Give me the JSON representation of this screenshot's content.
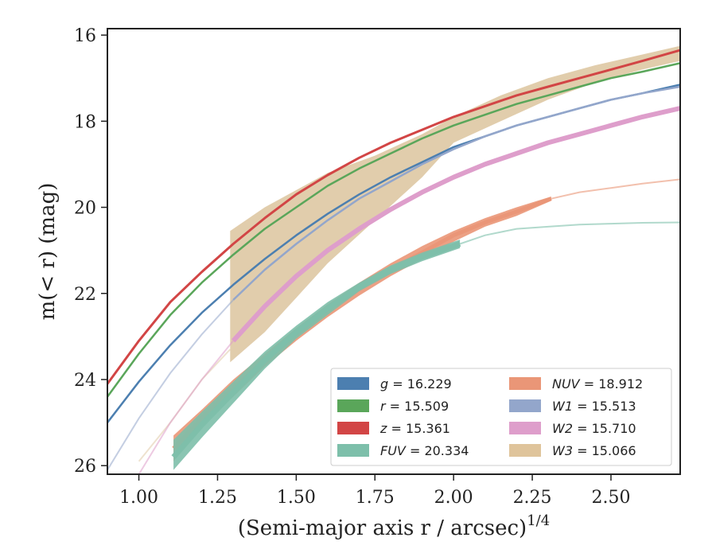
{
  "chart_data": {
    "type": "line",
    "xlabel": "(Semi-major axis r / arcsec)",
    "xlabel_superscript": "1/4",
    "ylabel": "m(< r) (mag)",
    "xlim": [
      0.9,
      2.72
    ],
    "ylim": [
      26.2,
      15.85
    ],
    "y_inverted": true,
    "x_ticks": [
      1.0,
      1.25,
      1.5,
      1.75,
      2.0,
      2.25,
      2.5
    ],
    "x_tick_labels": [
      "1.00",
      "1.25",
      "1.50",
      "1.75",
      "2.00",
      "2.25",
      "2.50"
    ],
    "y_ticks": [
      16,
      18,
      20,
      22,
      24,
      26
    ],
    "y_tick_labels": [
      "16",
      "18",
      "20",
      "22",
      "24",
      "26"
    ],
    "grid": false,
    "legend_position": "lower-right",
    "legend_ncol": 2,
    "legend": [
      {
        "band": "g",
        "value": "16.229",
        "color": "#4c7fb0"
      },
      {
        "band": "NUV",
        "value": "18.912",
        "color": "#ea9677"
      },
      {
        "band": "r",
        "value": "15.509",
        "color": "#5aa65a"
      },
      {
        "band": "W1",
        "value": "15.513",
        "color": "#93a6cb"
      },
      {
        "band": "z",
        "value": "15.361",
        "color": "#d24545"
      },
      {
        "band": "W2",
        "value": "15.710",
        "color": "#de9ecb"
      },
      {
        "band": "FUV",
        "value": "20.334",
        "color": "#7dbfaa"
      },
      {
        "band": "W3",
        "value": "15.066",
        "color": "#dfc49b"
      }
    ],
    "series": [
      {
        "name": "W3",
        "color": "#d9bf95",
        "band_fill": true,
        "x": [
          1.29,
          1.4,
          1.5,
          1.6,
          1.75,
          1.9,
          2.0,
          2.15,
          2.3,
          2.45,
          2.6,
          2.72
        ],
        "y_low": [
          23.6,
          22.9,
          22.1,
          21.3,
          20.3,
          19.3,
          18.5,
          18.0,
          17.5,
          17.1,
          16.8,
          16.6
        ],
        "y_high": [
          20.55,
          20.0,
          19.6,
          19.2,
          18.8,
          18.3,
          17.9,
          17.4,
          17.0,
          16.7,
          16.45,
          16.25
        ],
        "faint_x": [
          1.0,
          1.1,
          1.2,
          1.29
        ],
        "faint_y": [
          25.9,
          25.0,
          24.0,
          23.3
        ]
      },
      {
        "name": "z",
        "color": "#d24545",
        "width": 3,
        "x": [
          0.9,
          1.0,
          1.1,
          1.2,
          1.3,
          1.4,
          1.5,
          1.6,
          1.7,
          1.8,
          1.9,
          2.0,
          2.1,
          2.2,
          2.3,
          2.4,
          2.5,
          2.6,
          2.72
        ],
        "y": [
          24.1,
          23.1,
          22.2,
          21.5,
          20.85,
          20.25,
          19.7,
          19.25,
          18.85,
          18.5,
          18.2,
          17.9,
          17.65,
          17.4,
          17.2,
          17.0,
          16.8,
          16.6,
          16.35
        ]
      },
      {
        "name": "r",
        "color": "#5aa65a",
        "width": 2.5,
        "x": [
          0.9,
          1.0,
          1.1,
          1.2,
          1.3,
          1.4,
          1.5,
          1.6,
          1.7,
          1.8,
          1.9,
          2.0,
          2.1,
          2.2,
          2.3,
          2.4,
          2.5,
          2.6,
          2.72
        ],
        "y": [
          24.4,
          23.4,
          22.5,
          21.75,
          21.1,
          20.5,
          20.0,
          19.5,
          19.1,
          18.75,
          18.4,
          18.1,
          17.85,
          17.6,
          17.4,
          17.2,
          17.0,
          16.85,
          16.65
        ]
      },
      {
        "name": "g",
        "color": "#4c7fb0",
        "width": 2.5,
        "x": [
          0.9,
          1.0,
          1.1,
          1.2,
          1.3,
          1.4,
          1.5,
          1.6,
          1.7,
          1.8,
          1.9,
          2.0,
          2.1,
          2.2,
          2.3,
          2.4,
          2.5,
          2.6,
          2.72
        ],
        "y": [
          25.0,
          24.05,
          23.2,
          22.45,
          21.8,
          21.2,
          20.65,
          20.15,
          19.7,
          19.3,
          18.95,
          18.6,
          18.35,
          18.1,
          17.9,
          17.7,
          17.5,
          17.35,
          17.15
        ]
      },
      {
        "name": "W1",
        "color": "#93a6cb",
        "width": 2.5,
        "x": [
          0.9,
          1.0,
          1.1,
          1.2,
          1.3,
          1.4,
          1.5,
          1.6,
          1.7,
          1.8,
          1.9,
          2.0,
          2.1,
          2.2,
          2.3,
          2.4,
          2.5,
          2.6,
          2.72
        ],
        "y": [
          26.1,
          24.9,
          23.85,
          22.95,
          22.15,
          21.45,
          20.85,
          20.3,
          19.8,
          19.4,
          19.0,
          18.65,
          18.35,
          18.1,
          17.9,
          17.7,
          17.5,
          17.35,
          17.2
        ],
        "faint_until": 1.28
      },
      {
        "name": "W2",
        "color": "#de9ecb",
        "width": 6,
        "x": [
          1.0,
          1.1,
          1.2,
          1.3,
          1.4,
          1.5,
          1.6,
          1.7,
          1.8,
          1.9,
          2.0,
          2.1,
          2.2,
          2.3,
          2.4,
          2.5,
          2.6,
          2.72
        ],
        "y": [
          26.2,
          25.0,
          24.0,
          23.1,
          22.3,
          21.6,
          21.0,
          20.5,
          20.05,
          19.65,
          19.3,
          19.0,
          18.75,
          18.5,
          18.3,
          18.1,
          17.9,
          17.7
        ],
        "faint_until": 1.28
      },
      {
        "name": "NUV",
        "color": "#ea9677",
        "width": 5,
        "x": [
          1.11,
          1.2,
          1.3,
          1.4,
          1.5,
          1.6,
          1.7,
          1.8,
          1.9,
          2.0,
          2.1,
          2.2,
          2.31
        ],
        "y": [
          25.6,
          24.9,
          24.2,
          23.55,
          22.95,
          22.4,
          21.9,
          21.45,
          21.05,
          20.65,
          20.35,
          20.1,
          19.8
        ],
        "faint_x": [
          2.31,
          2.4,
          2.5,
          2.6,
          2.72
        ],
        "faint_y": [
          19.8,
          19.65,
          19.55,
          19.45,
          19.35
        ],
        "band_top": [
          25.3,
          24.7,
          24.0,
          23.4,
          22.8,
          22.25,
          21.75,
          21.3,
          20.9,
          20.55,
          20.25,
          20.0,
          19.75
        ],
        "band_bottom": [
          25.9,
          25.1,
          24.4,
          23.7,
          23.1,
          22.55,
          22.05,
          21.6,
          21.2,
          20.8,
          20.45,
          20.2,
          19.85
        ]
      },
      {
        "name": "FUV",
        "color": "#7dbfaa",
        "width": 7,
        "x": [
          1.11,
          1.2,
          1.3,
          1.4,
          1.5,
          1.6,
          1.7,
          1.8,
          1.9,
          2.02
        ],
        "y": [
          25.8,
          25.05,
          24.3,
          23.55,
          22.9,
          22.35,
          21.85,
          21.45,
          21.15,
          20.85
        ],
        "faint_x": [
          2.02,
          2.1,
          2.2,
          2.3,
          2.4,
          2.5,
          2.6,
          2.72
        ],
        "faint_y": [
          20.85,
          20.65,
          20.5,
          20.45,
          20.4,
          20.38,
          20.36,
          20.35
        ],
        "band_top": [
          25.4,
          24.75,
          24.05,
          23.35,
          22.75,
          22.2,
          21.75,
          21.35,
          21.05,
          20.75
        ],
        "band_bottom": [
          26.1,
          25.35,
          24.55,
          23.75,
          23.05,
          22.5,
          21.95,
          21.55,
          21.25,
          20.95
        ]
      }
    ]
  }
}
